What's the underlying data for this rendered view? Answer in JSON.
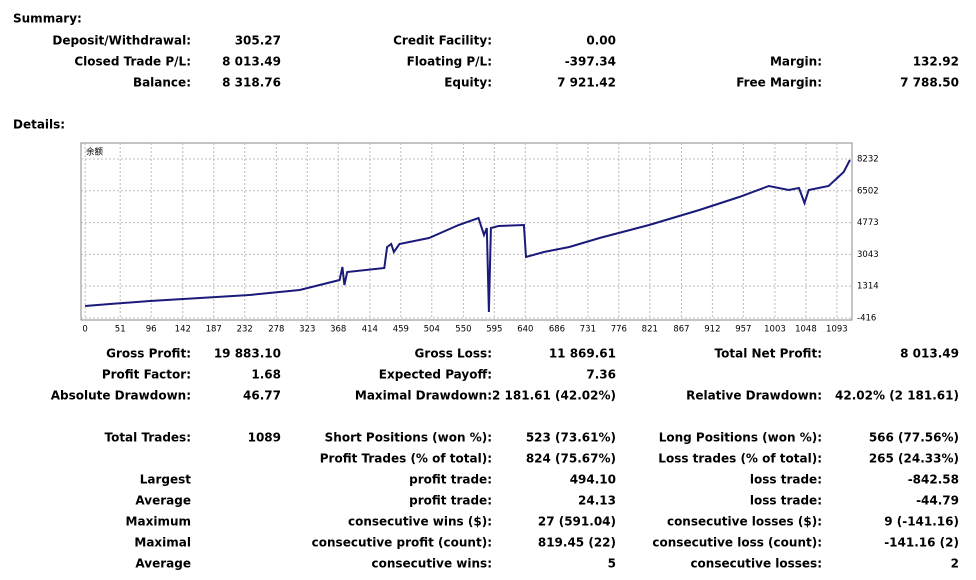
{
  "summary": {
    "title": "Summary:",
    "items": [
      {
        "label": "Deposit/Withdrawal:",
        "value": "305.27"
      },
      {
        "label": "Credit Facility:",
        "value": "0.00"
      },
      {
        "label": "Closed Trade P/L:",
        "value": "8 013.49"
      },
      {
        "label": "Floating P/L:",
        "value": "-397.34"
      },
      {
        "label": "Margin:",
        "value": "132.92"
      },
      {
        "label": "Balance:",
        "value": "8 318.76"
      },
      {
        "label": "Equity:",
        "value": "7 921.42"
      },
      {
        "label": "Free Margin:",
        "value": "7 788.50"
      }
    ]
  },
  "details": {
    "title": "Details:",
    "chart": {
      "type": "line",
      "label": "余额",
      "color": "#1a1a7a",
      "x": [
        0,
        36,
        94,
        167,
        239,
        312,
        370,
        374,
        377,
        381,
        435,
        439,
        445,
        449,
        457,
        500,
        543,
        572,
        580,
        584,
        587,
        590,
        601,
        638,
        641,
        667,
        704,
        748,
        820,
        893,
        951,
        994,
        1023,
        1038,
        1046,
        1052,
        1081,
        1103,
        1112
      ],
      "values": [
        238,
        347,
        510,
        673,
        836,
        1108,
        1652,
        2359,
        1380,
        2087,
        2305,
        3447,
        3610,
        3175,
        3610,
        3936,
        4643,
        5023,
        4099,
        4480,
        -88,
        4480,
        4589,
        4643,
        2903,
        3175,
        3447,
        3936,
        4643,
        5459,
        6166,
        6764,
        6546,
        6655,
        5839,
        6546,
        6764,
        7525,
        8178
      ],
      "xlim": [
        -6,
        1115
      ],
      "ylim": [
        -525,
        9100
      ],
      "xticks": [
        0,
        51,
        96,
        142,
        187,
        232,
        278,
        323,
        368,
        414,
        459,
        504,
        550,
        595,
        640,
        686,
        731,
        776,
        821,
        867,
        912,
        957,
        1003,
        1048,
        1093
      ],
      "yticks": [
        -416,
        1314,
        3043,
        4773,
        6502,
        8232
      ],
      "grid": true
    },
    "items": [
      {
        "label": "Gross Profit:",
        "value": "19 883.10"
      },
      {
        "label": "Gross Loss:",
        "value": "11 869.61"
      },
      {
        "label": "Total Net Profit:",
        "value": "8 013.49"
      },
      {
        "label": "Profit Factor:",
        "value": "1.68"
      },
      {
        "label": "Expected Payoff:",
        "value": "7.36"
      },
      {
        "label": "Absolute Drawdown:",
        "value": "46.77"
      },
      {
        "label": "Maximal Drawdown:",
        "value": "2 181.61 (42.02%)"
      },
      {
        "label": "Relative Drawdown:",
        "value": "42.02% (2 181.61)"
      },
      {
        "label": "Total Trades:",
        "value": "1089"
      },
      {
        "label": "Short Positions (won %):",
        "value": "523 (73.61%)"
      },
      {
        "label": "Long Positions (won %):",
        "value": "566 (77.56%)"
      },
      {
        "label": "Profit Trades (% of total):",
        "value": "824 (75.67%)"
      },
      {
        "label": "Loss trades (% of total):",
        "value": "265 (24.33%)"
      },
      {
        "label": "Largest"
      },
      {
        "label": "profit trade:",
        "value": "494.10"
      },
      {
        "label": "loss trade:",
        "value": "-842.58"
      },
      {
        "label": "Average"
      },
      {
        "label": "profit trade:",
        "value": "24.13"
      },
      {
        "label": "loss trade:",
        "value": "-44.79"
      },
      {
        "label": "Maximum"
      },
      {
        "label": "consecutive wins ($):",
        "value": "27 (591.04)"
      },
      {
        "label": "consecutive losses ($):",
        "value": "9 (-141.16)"
      },
      {
        "label": "Maximal"
      },
      {
        "label": "consecutive profit (count):",
        "value": "819.45 (22)"
      },
      {
        "label": "consecutive loss (count):",
        "value": "-141.16 (2)"
      },
      {
        "label": "Average"
      },
      {
        "label": "consecutive wins:",
        "value": "5"
      },
      {
        "label": "consecutive losses:",
        "value": "2"
      }
    ]
  }
}
